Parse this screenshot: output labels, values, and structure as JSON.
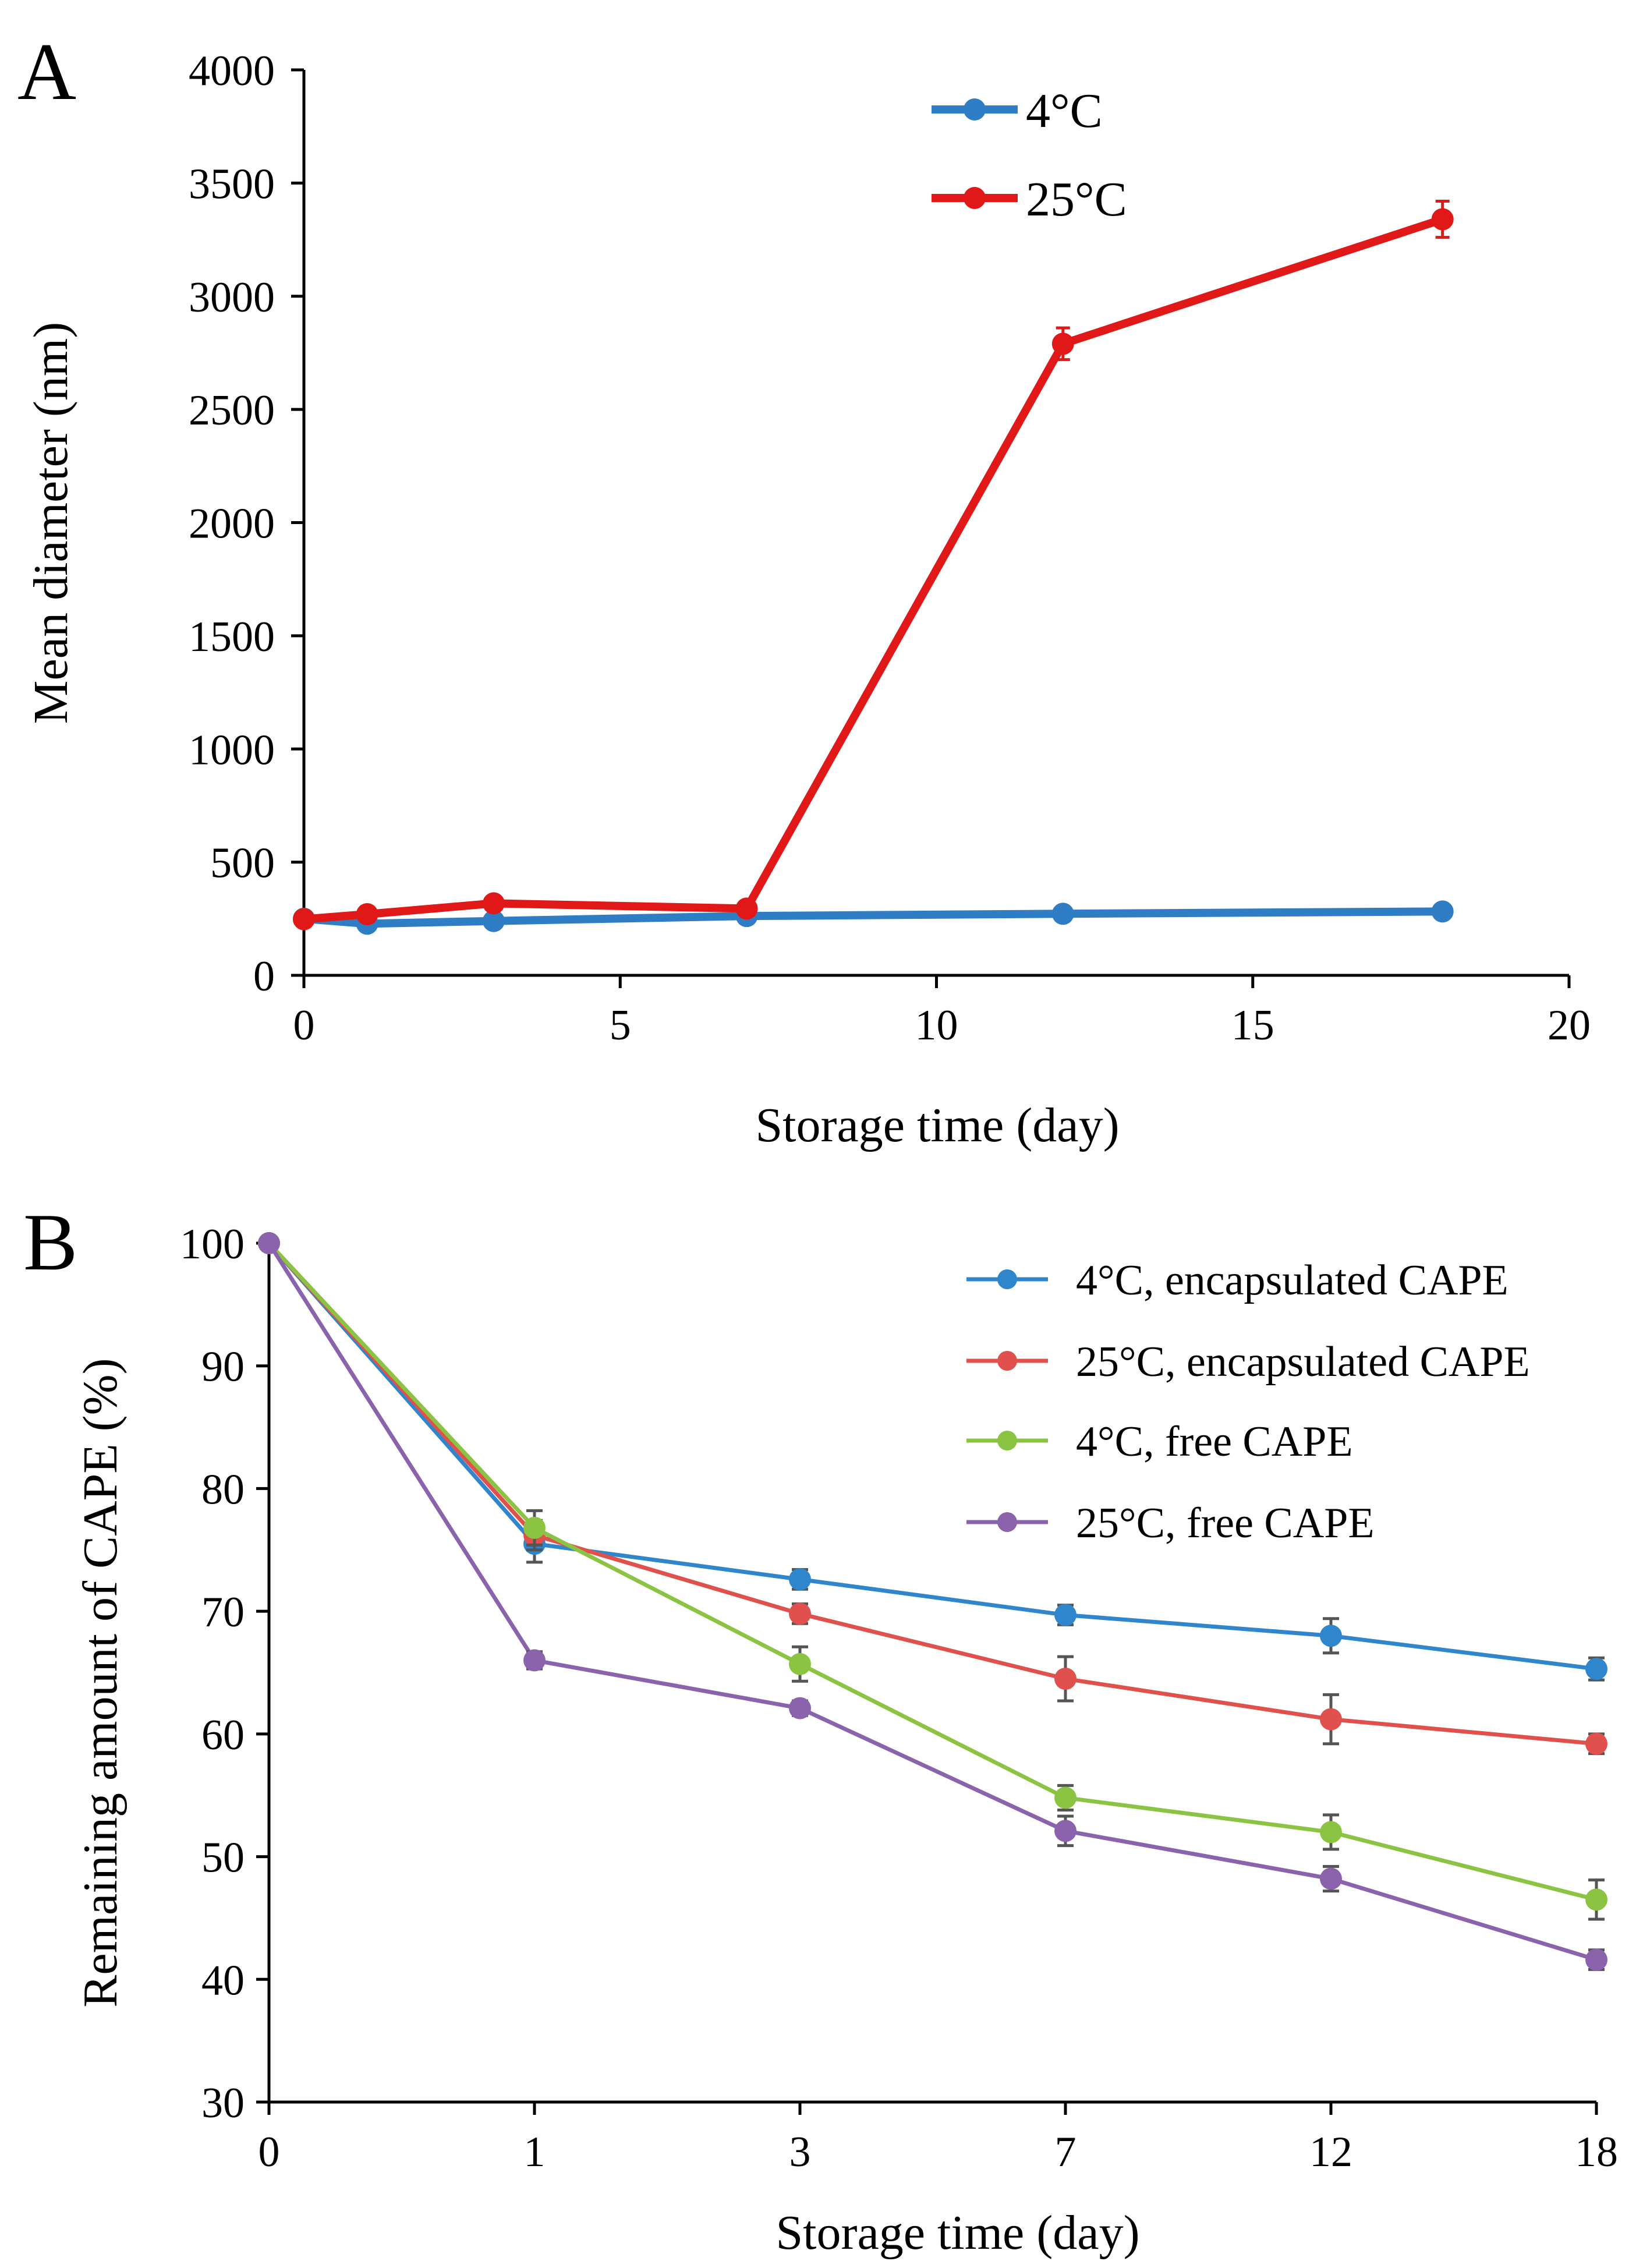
{
  "chart_data": [
    {
      "panel": "A",
      "type": "line",
      "xlabel": "Storage time (day)",
      "ylabel": "Mean diameter (nm)",
      "xlim": [
        0,
        20
      ],
      "ylim": [
        0,
        4000
      ],
      "xticks": [
        "0",
        "5",
        "10",
        "15",
        "20"
      ],
      "yticks": [
        "0",
        "500",
        "1000",
        "1500",
        "2000",
        "2500",
        "3000",
        "3500",
        "4000"
      ],
      "legend_position": "top-center",
      "grid": false,
      "series": [
        {
          "name": "4°C",
          "color": "#2e7dc5",
          "x": [
            0,
            1,
            3,
            7,
            12,
            18
          ],
          "values": [
            250,
            228,
            240,
            262,
            272,
            282
          ],
          "errors": [
            10,
            10,
            10,
            10,
            10,
            15
          ]
        },
        {
          "name": "25°C",
          "color": "#e01818",
          "x": [
            0,
            1,
            3,
            7,
            12,
            18
          ],
          "values": [
            248,
            270,
            318,
            295,
            2790,
            3340
          ],
          "errors": [
            10,
            15,
            20,
            20,
            70,
            80
          ]
        }
      ]
    },
    {
      "panel": "B",
      "type": "line",
      "xlabel": "Storage time (day)",
      "ylabel": "Remaining amount of CAPE (%)",
      "categories": [
        "0",
        "1",
        "3",
        "7",
        "12",
        "18"
      ],
      "ylim": [
        30,
        100
      ],
      "yticks": [
        "30",
        "40",
        "50",
        "60",
        "70",
        "80",
        "90",
        "100"
      ],
      "legend_position": "top-right",
      "grid": false,
      "series": [
        {
          "name": "4°C, encapsulated CAPE",
          "color": "#2f86cc",
          "values": [
            100,
            75.5,
            72.6,
            69.7,
            68.0,
            65.3
          ],
          "errors": [
            0,
            1.5,
            0.8,
            0.8,
            1.4,
            0.9
          ]
        },
        {
          "name": "25°C, encapsulated CAPE",
          "color": "#e0504c",
          "values": [
            100,
            76.2,
            69.8,
            64.5,
            61.2,
            59.2
          ],
          "errors": [
            0,
            1.2,
            0.8,
            1.8,
            2.0,
            0.8
          ]
        },
        {
          "name": "4°C, free CAPE",
          "color": "#8bc443",
          "values": [
            100,
            76.8,
            65.7,
            54.8,
            52.0,
            46.5
          ],
          "errors": [
            0,
            1.4,
            1.4,
            1.0,
            1.4,
            1.6
          ]
        },
        {
          "name": "25°C, free CAPE",
          "color": "#8b63ad",
          "values": [
            100,
            66.0,
            62.1,
            52.1,
            48.2,
            41.6
          ],
          "errors": [
            0,
            0.7,
            0.6,
            1.2,
            1.0,
            0.8
          ]
        }
      ]
    }
  ],
  "panels": {
    "a_label": "A",
    "b_label": "B"
  },
  "colors": {
    "axis": "#000000",
    "error_bar_b": "#555555"
  }
}
